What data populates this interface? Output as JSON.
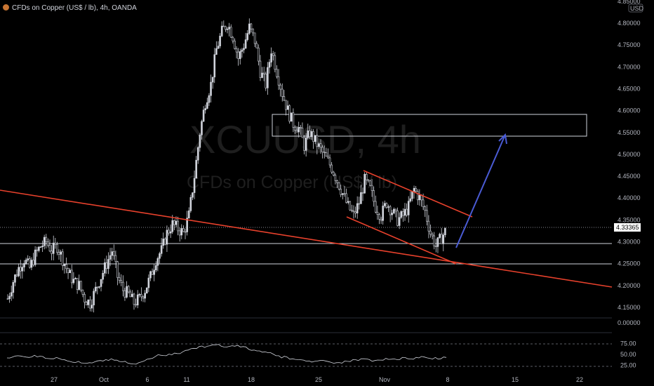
{
  "header": {
    "title": "CFDs on Copper (US$ / lb), 4h, OANDA"
  },
  "watermark": {
    "symbol_label": "XCUUSD, 4h",
    "description": "CFDs on Copper (US$ / lb)"
  },
  "price_axis": {
    "currency": "USD",
    "last_price": "4.33365",
    "ticks": [
      "4.85000",
      "4.80000",
      "4.75000",
      "4.70000",
      "4.65000",
      "4.60000",
      "4.55000",
      "4.50000",
      "4.45000",
      "4.40000",
      "4.35000",
      "4.30000",
      "4.25000",
      "4.20000",
      "4.15000"
    ],
    "volume_zero": "0.00000"
  },
  "time_axis": {
    "labels": [
      "27",
      "Oct",
      "6",
      "11",
      "18",
      "25",
      "Nov",
      "8",
      "15",
      "22"
    ]
  },
  "rsi": {
    "ticks": [
      "75.00",
      "50.00",
      "25.00"
    ]
  },
  "colors": {
    "up": "#d1d4dc",
    "down": "#d1d4dc",
    "trendline": "#e8412c",
    "arrow": "#4a5bd4",
    "zone": "#d1d4dc",
    "level": "#d1d4dc"
  },
  "chart_data": {
    "type": "candlestick",
    "title": "CFDs on Copper (US$ / lb), 4h, OANDA",
    "ylim": [
      4.13,
      4.86
    ],
    "x_labels": [
      "27",
      "Oct",
      "6",
      "11",
      "18",
      "25",
      "Nov",
      "8",
      "15",
      "22"
    ],
    "horizontal_levels": [
      4.335,
      4.297,
      4.252
    ],
    "zone": [
      4.543,
      4.593
    ],
    "last_price": 4.33365,
    "path_close": [
      4.17,
      4.21,
      4.24,
      4.26,
      4.24,
      4.27,
      4.29,
      4.3,
      4.28,
      4.29,
      4.26,
      4.23,
      4.21,
      4.2,
      4.17,
      4.16,
      4.19,
      4.22,
      4.25,
      4.28,
      4.22,
      4.19,
      4.18,
      4.16,
      4.17,
      4.19,
      4.22,
      4.26,
      4.28,
      4.32,
      4.34,
      4.33,
      4.32,
      4.36,
      4.45,
      4.55,
      4.62,
      4.66,
      4.74,
      4.78,
      4.8,
      4.77,
      4.72,
      4.75,
      4.79,
      4.76,
      4.69,
      4.66,
      4.74,
      4.69,
      4.64,
      4.6,
      4.57,
      4.56,
      4.52,
      4.55,
      4.53,
      4.51,
      4.49,
      4.47,
      4.44,
      4.41,
      4.38,
      4.36,
      4.39,
      4.44,
      4.42,
      4.38,
      4.36,
      4.39,
      4.37,
      4.35,
      4.36,
      4.38,
      4.42,
      4.4,
      4.37,
      4.32,
      4.29,
      4.31,
      4.33
    ],
    "rsi_values": [
      42,
      44,
      47,
      45,
      43,
      48,
      46,
      41,
      40,
      43,
      38,
      35,
      32,
      34,
      30,
      31,
      33,
      36,
      38,
      40,
      37,
      33,
      30,
      28,
      31,
      35,
      40,
      45,
      48,
      47,
      49,
      52,
      56,
      60,
      64,
      68,
      66,
      70,
      72,
      69,
      67,
      70,
      71,
      68,
      62,
      60,
      58,
      56,
      54,
      47,
      42,
      44,
      40,
      38,
      37,
      35,
      34,
      36,
      35,
      32,
      31,
      30,
      34,
      38,
      36,
      40,
      38,
      36,
      37,
      41,
      39,
      38,
      43,
      40,
      39,
      42,
      44,
      41,
      43,
      40,
      43
    ]
  }
}
